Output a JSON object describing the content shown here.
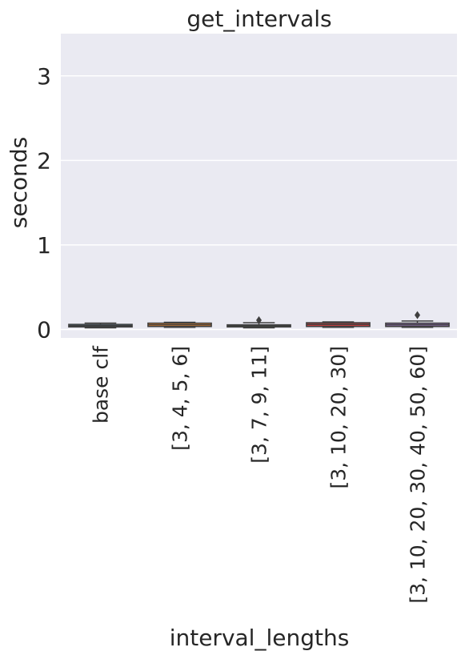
{
  "chart_data": {
    "type": "box",
    "title": "get_intervals",
    "xlabel": "interval_lengths",
    "ylabel": "seconds",
    "ylim": [
      -0.1,
      3.5
    ],
    "yticks": [
      0,
      1,
      2,
      3
    ],
    "grid": true,
    "background": "#eaeaf2",
    "categories": [
      "base clf",
      "[3, 4, 5, 6]",
      "[3, 7, 9, 11]",
      "[3, 10, 20, 30]",
      "[3, 10, 20, 30, 40, 50, 60]"
    ],
    "colors": [
      "#3274a1",
      "#e1812c",
      "#3a923a",
      "#c03d3e",
      "#9372b2"
    ],
    "boxes": [
      {
        "category": "base clf",
        "whisker_low": 0.02,
        "q1": 0.03,
        "median": 0.045,
        "q3": 0.06,
        "whisker_high": 0.075,
        "outliers": []
      },
      {
        "category": "[3, 4, 5, 6]",
        "whisker_low": 0.025,
        "q1": 0.035,
        "median": 0.055,
        "q3": 0.075,
        "whisker_high": 0.085,
        "outliers": []
      },
      {
        "category": "[3, 7, 9, 11]",
        "whisker_low": 0.02,
        "q1": 0.03,
        "median": 0.045,
        "q3": 0.055,
        "whisker_high": 0.08,
        "outliers": [
          0.11
        ]
      },
      {
        "category": "[3, 10, 20, 30]",
        "whisker_low": 0.025,
        "q1": 0.035,
        "median": 0.06,
        "q3": 0.08,
        "whisker_high": 0.09,
        "outliers": []
      },
      {
        "category": "[3, 10, 20, 30, 40, 50, 60]",
        "whisker_low": 0.025,
        "q1": 0.035,
        "median": 0.055,
        "q3": 0.075,
        "whisker_high": 0.1,
        "outliers": [
          0.17
        ]
      }
    ]
  }
}
